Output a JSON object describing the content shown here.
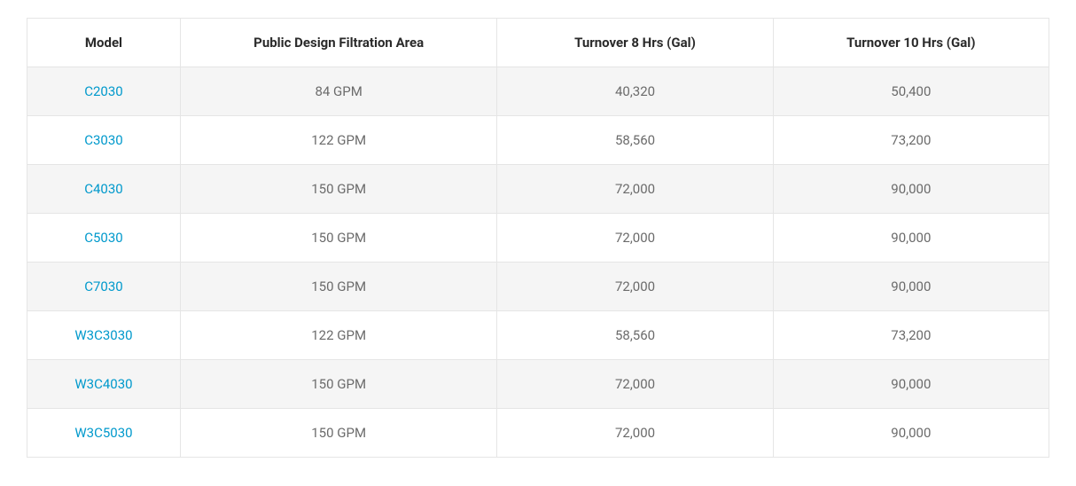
{
  "table": {
    "columns": [
      {
        "key": "model",
        "label": "Model"
      },
      {
        "key": "filtration",
        "label": "Public Design Filtration Area"
      },
      {
        "key": "turnover8",
        "label": "Turnover 8 Hrs (Gal)"
      },
      {
        "key": "turnover10",
        "label": "Turnover 10 Hrs (Gal)"
      }
    ],
    "rows": [
      {
        "model": "C2030",
        "filtration": "84 GPM",
        "turnover8": "40,320",
        "turnover10": "50,400"
      },
      {
        "model": "C3030",
        "filtration": "122 GPM",
        "turnover8": "58,560",
        "turnover10": "73,200"
      },
      {
        "model": "C4030",
        "filtration": "150 GPM",
        "turnover8": "72,000",
        "turnover10": "90,000"
      },
      {
        "model": "C5030",
        "filtration": "150 GPM",
        "turnover8": "72,000",
        "turnover10": "90,000"
      },
      {
        "model": "C7030",
        "filtration": "150 GPM",
        "turnover8": "72,000",
        "turnover10": "90,000"
      },
      {
        "model": "W3C3030",
        "filtration": "122 GPM",
        "turnover8": "58,560",
        "turnover10": "73,200"
      },
      {
        "model": "W3C4030",
        "filtration": "150 GPM",
        "turnover8": "72,000",
        "turnover10": "90,000"
      },
      {
        "model": "W3C5030",
        "filtration": "150 GPM",
        "turnover8": "72,000",
        "turnover10": "90,000"
      }
    ],
    "link_color": "#0099cc",
    "text_color": "#6b6b6b",
    "header_color": "#2a2a2a",
    "border_color": "#e5e5e5",
    "row_odd_bg": "#f5f5f5",
    "row_even_bg": "#ffffff",
    "font_size": 15
  }
}
